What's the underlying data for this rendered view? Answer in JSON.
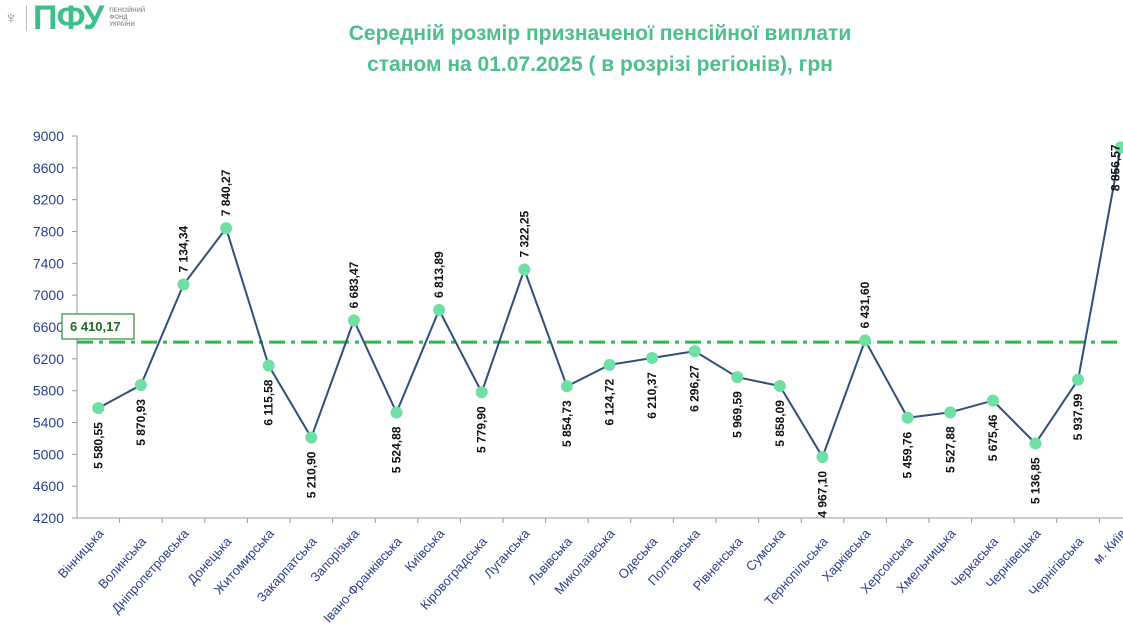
{
  "logo": {
    "abbr": "ПФУ",
    "org_lines": [
      "ПЕНСІЙНИЙ",
      "ФОНД",
      "УКРАЇНИ"
    ]
  },
  "title": {
    "line1": "Середній розмір призначеної пенсійної виплати",
    "line2": "станом на 01.07.2025 ( в розрізі регіонів), грн"
  },
  "chart_data": {
    "type": "line",
    "title": "Середній розмір призначеної пенсійної виплати станом на 01.07.2025 ( в розрізі регіонів), грн",
    "ylim": [
      4200,
      9000
    ],
    "yticks": [
      "4200",
      "4600",
      "5000",
      "5400",
      "5800",
      "6200",
      "6600",
      "7000",
      "7400",
      "7800",
      "8200",
      "8600",
      "9000"
    ],
    "categories": [
      "Вінницька",
      "Волинська",
      "Дніпропетровська",
      "Донецька",
      "Житомирська",
      "Закарпатська",
      "Запорізька",
      "Івано-Франківська",
      "Київська",
      "Кіровоградська",
      "Луганська",
      "Львівська",
      "Миколаївська",
      "Одеська",
      "Полтавська",
      "Рівненська",
      "Сумська",
      "Тернопільська",
      "Харківська",
      "Херсонська",
      "Хмельницька",
      "Черкаська",
      "Чернівецька",
      "Чернігівська",
      "м. Київ"
    ],
    "values": [
      5580.55,
      5870.93,
      7134.34,
      7840.27,
      6115.58,
      5210.9,
      6683.47,
      5524.88,
      6813.89,
      5779.9,
      7322.25,
      5854.73,
      6124.72,
      6210.37,
      6296.27,
      5969.59,
      5858.09,
      4967.1,
      6431.6,
      5459.76,
      5527.88,
      5675.46,
      5136.85,
      5937.99,
      8856.57
    ],
    "labels": [
      "5 580,55",
      "5 870,93",
      "7 134,34",
      "7 840,27",
      "6 115,58",
      "5 210,90",
      "6 683,47",
      "5 524,88",
      "6 813,89",
      "5 779,90",
      "7 322,25",
      "5 854,73",
      "6 124,72",
      "6 210,37",
      "6 296,27",
      "5 969,59",
      "5 858,09",
      "4 967,10",
      "6 431,60",
      "5 459,76",
      "5 527,88",
      "5 675,46",
      "5 136,85",
      "5 937,99",
      "8 856,57"
    ],
    "average": {
      "value": 6410.17,
      "label": "6 410,17"
    },
    "colors": {
      "line": "#2e4f7a",
      "marker": "#6fe0a4",
      "average": "#1fbf4a",
      "axis_text": "#2b3f8c"
    },
    "grid": false
  }
}
